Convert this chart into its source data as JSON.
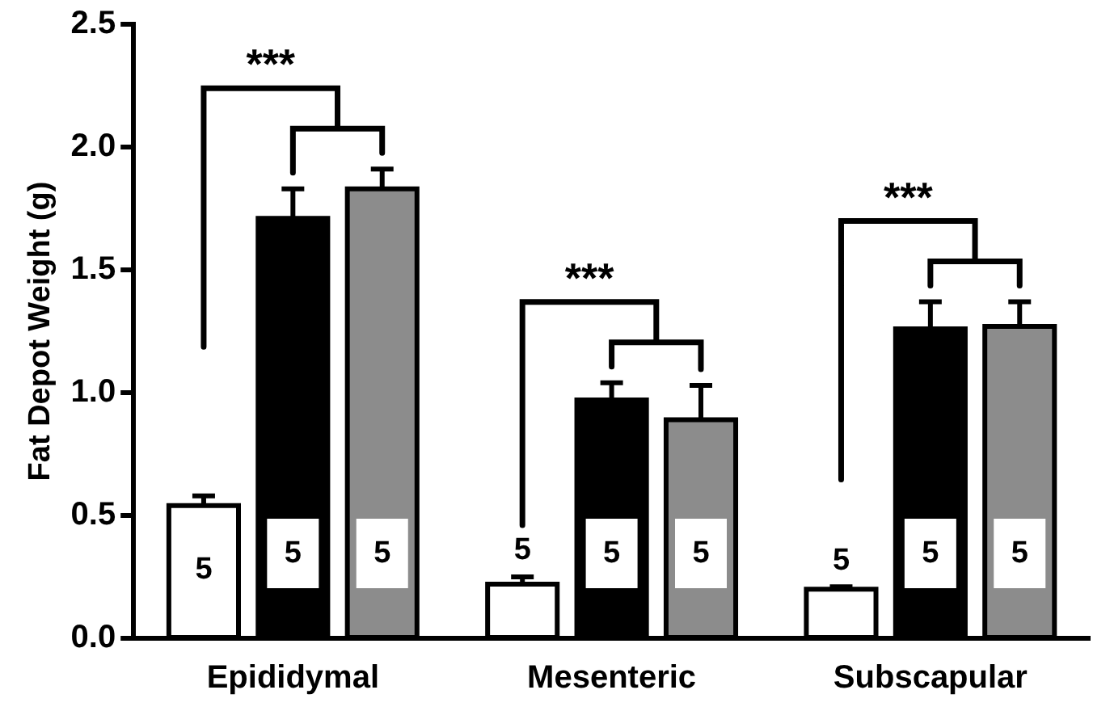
{
  "chart_data": {
    "type": "bar",
    "ylabel": "Fat Depot Weight (g)",
    "categories": [
      "Epididymal",
      "Mesenteric",
      "Subscapular"
    ],
    "series": [
      {
        "color": "#ffffff",
        "values": [
          0.54,
          0.22,
          0.2
        ],
        "errors": [
          [
            0.54,
            0.58
          ],
          [
            0.22,
            0.25
          ],
          [
            0.2,
            0.21
          ]
        ]
      },
      {
        "color": "#000000",
        "values": [
          1.71,
          0.97,
          1.26
        ],
        "errors": [
          [
            1.71,
            1.83
          ],
          [
            0.97,
            1.04
          ],
          [
            1.26,
            1.37
          ]
        ]
      },
      {
        "color": "#8c8c8c",
        "values": [
          1.83,
          0.89,
          1.27
        ],
        "errors": [
          [
            1.83,
            1.91
          ],
          [
            0.89,
            1.03
          ],
          [
            1.27,
            1.37
          ]
        ]
      }
    ],
    "annotations": [
      "***",
      "***",
      "***",
      "5",
      "5",
      "5",
      "5",
      "5",
      "5",
      "5",
      "5",
      "5"
    ],
    "ylim": [
      0,
      2.5
    ],
    "yticks": [
      {
        "value": 0,
        "label": "0.0"
      },
      {
        "value": 0.5,
        "label": "0.5"
      },
      {
        "value": 1,
        "label": "1.0"
      },
      {
        "value": 1.5,
        "label": "1.5"
      },
      {
        "value": 2,
        "label": "2.0"
      },
      {
        "value": 2.5,
        "label": "2.5"
      }
    ],
    "grid": false,
    "legend": false
  }
}
